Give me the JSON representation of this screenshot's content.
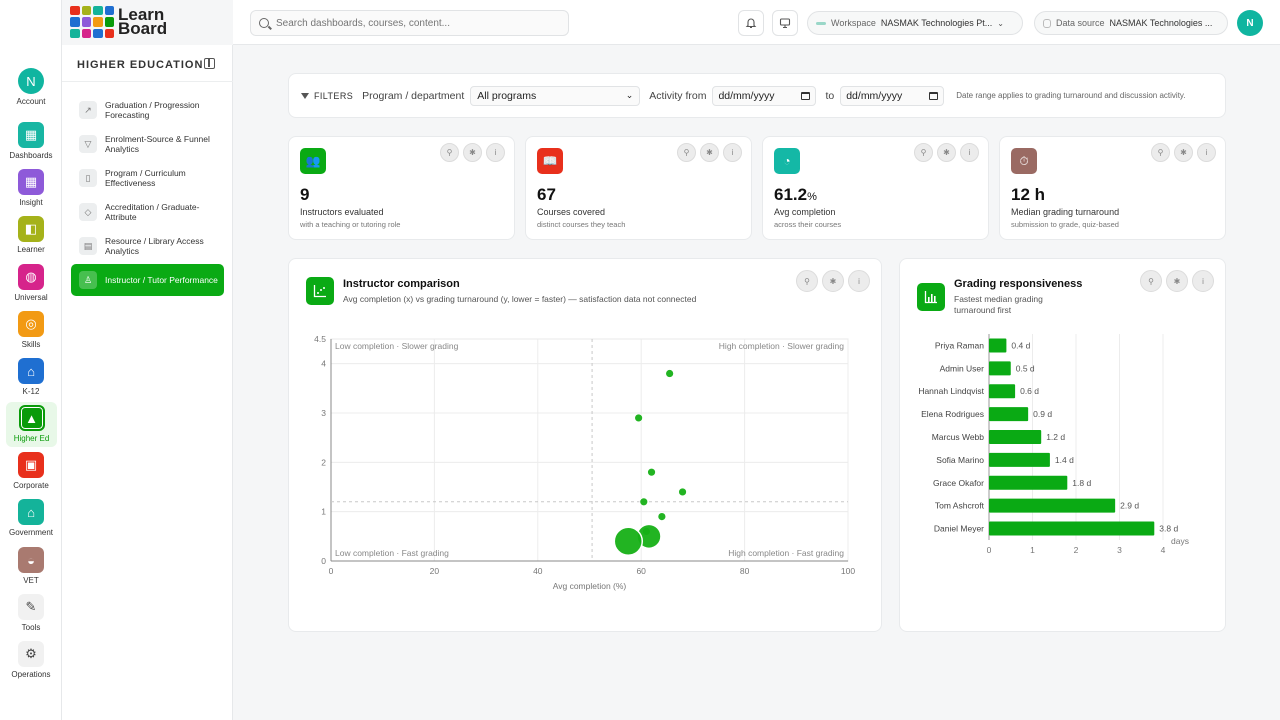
{
  "app": {
    "logo_line1": "Learn",
    "logo_line2": "Board"
  },
  "rail": [
    {
      "label": "Account",
      "icon": "account-icon",
      "color": "#10b5a0",
      "glyph": "N"
    },
    {
      "label": "Dashboards",
      "icon": "dashboards-icon",
      "color": "#18b6a3",
      "glyph": "▦"
    },
    {
      "label": "Insight",
      "icon": "insight-icon",
      "color": "#8e5ad9",
      "glyph": "▦"
    },
    {
      "label": "Learner",
      "icon": "learner-icon",
      "color": "#a5b21a",
      "glyph": "◧"
    },
    {
      "label": "Universal",
      "icon": "globe-icon",
      "color": "#d6248b",
      "glyph": "◍"
    },
    {
      "label": "Skills",
      "icon": "target-icon",
      "color": "#f29a14",
      "glyph": "◎"
    },
    {
      "label": "K-12",
      "icon": "school-icon",
      "color": "#1f6fd1",
      "glyph": "⌂"
    },
    {
      "label": "Higher Ed",
      "icon": "graduation-cap-icon",
      "color": "#0a9b0a",
      "glyph": "▲"
    },
    {
      "label": "Corporate",
      "icon": "briefcase-icon",
      "color": "#e8301c",
      "glyph": "▣"
    },
    {
      "label": "Government",
      "icon": "government-icon",
      "color": "#14b39a",
      "glyph": "⌂"
    },
    {
      "label": "VET",
      "icon": "hard-hat-icon",
      "color": "#a97a70",
      "glyph": "◒"
    },
    {
      "label": "Tools",
      "icon": "wrench-icon",
      "color": "#f1f1f1",
      "glyph": "✎"
    },
    {
      "label": "Operations",
      "icon": "gear-icon",
      "color": "#f1f1f1",
      "glyph": "⚙"
    }
  ],
  "sidebar": {
    "title": "HIGHER EDUCATION",
    "items": [
      {
        "label": "Graduation / Progression Forecasting",
        "icon": "trend-icon",
        "glyph": "↗"
      },
      {
        "label": "Enrolment-Source & Funnel Analytics",
        "icon": "funnel-icon",
        "glyph": "▽"
      },
      {
        "label": "Program / Curriculum Effectiveness",
        "icon": "book-icon",
        "glyph": "▯"
      },
      {
        "label": "Accreditation / Graduate-Attribute",
        "icon": "award-icon",
        "glyph": "◇"
      },
      {
        "label": "Resource / Library Access Analytics",
        "icon": "library-icon",
        "glyph": "▤"
      },
      {
        "label": "Instructor / Tutor Performance",
        "icon": "user-check-icon",
        "glyph": "♙"
      }
    ]
  },
  "topbar": {
    "search_placeholder": "Search dashboards, courses, content...",
    "workspace_label": "Workspace",
    "workspace_value": "NASMAK Technologies Pt...",
    "datasource_label": "Data source",
    "datasource_value": "NASMAK Technologies ...",
    "avatar": "N"
  },
  "filters": {
    "tag": "FILTERS",
    "program_label": "Program / department",
    "program_value": "All programs",
    "activity_label": "Activity from",
    "from_value": "dd/mm/yyyy",
    "to_label": "to",
    "to_value": "dd/mm/yyyy",
    "note": "Date range applies to grading turnaround and discussion activity."
  },
  "kpis": [
    {
      "value": "9",
      "unit": "",
      "label": "Instructors evaluated",
      "sub": "with a teaching or tutoring role",
      "color": "#0aaa14",
      "icon": "users-icon",
      "glyph": "👥"
    },
    {
      "value": "67",
      "unit": "",
      "label": "Courses covered",
      "sub": "distinct courses they teach",
      "color": "#e8301c",
      "icon": "open-book-icon",
      "glyph": "📖"
    },
    {
      "value": "61.2",
      "unit": "%",
      "label": "Avg completion",
      "sub": "across their courses",
      "color": "#14b8a6",
      "icon": "gauge-icon",
      "glyph": "◔"
    },
    {
      "value": "12 h",
      "unit": "",
      "label": "Median grading turnaround",
      "sub": "submission to grade, quiz-based",
      "color": "#9a6a63",
      "icon": "stopwatch-icon",
      "glyph": "⏱"
    }
  ],
  "scatter_panel": {
    "title": "Instructor comparison",
    "subtitle": "Avg completion (x) vs grading turnaround (y, lower = faster) — satisfaction data not connected"
  },
  "bar_panel": {
    "title": "Grading responsiveness",
    "subtitle": "Fastest median grading turnaround first"
  },
  "chart_data": [
    {
      "type": "scatter",
      "xlabel": "Avg completion (%)",
      "ylabel": "",
      "xlim": [
        0,
        100
      ],
      "ylim": [
        0,
        4.5
      ],
      "x_ticks": [
        0,
        20,
        40,
        60,
        80,
        100
      ],
      "y_ticks": [
        0,
        1,
        2,
        3,
        4
      ],
      "y_top_label": "4.5",
      "grid": true,
      "quadrant_labels": {
        "top_left": "Low completion · Slower grading",
        "top_right": "High completion · Slower grading",
        "bottom_left": "Low completion · Fast grading",
        "bottom_right": "High completion · Fast grading"
      },
      "reference_lines": {
        "x": 50.5,
        "y": 1.2
      },
      "points": [
        {
          "x": 65.5,
          "y": 3.8,
          "size": 1
        },
        {
          "x": 59.5,
          "y": 2.9,
          "size": 1
        },
        {
          "x": 62,
          "y": 1.8,
          "size": 1
        },
        {
          "x": 68,
          "y": 1.4,
          "size": 1
        },
        {
          "x": 60.5,
          "y": 1.2,
          "size": 1
        },
        {
          "x": 64,
          "y": 0.9,
          "size": 1
        },
        {
          "x": 61,
          "y": 0.6,
          "size": 1
        },
        {
          "x": 61.5,
          "y": 0.5,
          "size": 3
        },
        {
          "x": 57.5,
          "y": 0.4,
          "size": 3.5
        }
      ],
      "color": "#16b016"
    },
    {
      "type": "bar",
      "orientation": "horizontal",
      "categories": [
        "Priya Raman",
        "Admin User",
        "Hannah Lindqvist",
        "Elena Rodrigues",
        "Marcus Webb",
        "Sofia Marino",
        "Grace Okafor",
        "Tom Ashcroft",
        "Daniel Meyer"
      ],
      "values": [
        0.4,
        0.5,
        0.6,
        0.9,
        1.2,
        1.4,
        1.8,
        2.9,
        3.8
      ],
      "value_labels": [
        "0.4 d",
        "0.5 d",
        "0.6 d",
        "0.9 d",
        "1.2 d",
        "1.4 d",
        "1.8 d",
        "2.9 d",
        "3.8 d"
      ],
      "xlabel": "days",
      "xlim": [
        0,
        4
      ],
      "x_ticks": [
        0,
        1,
        2,
        3,
        4
      ],
      "color": "#0aaa14"
    }
  ]
}
